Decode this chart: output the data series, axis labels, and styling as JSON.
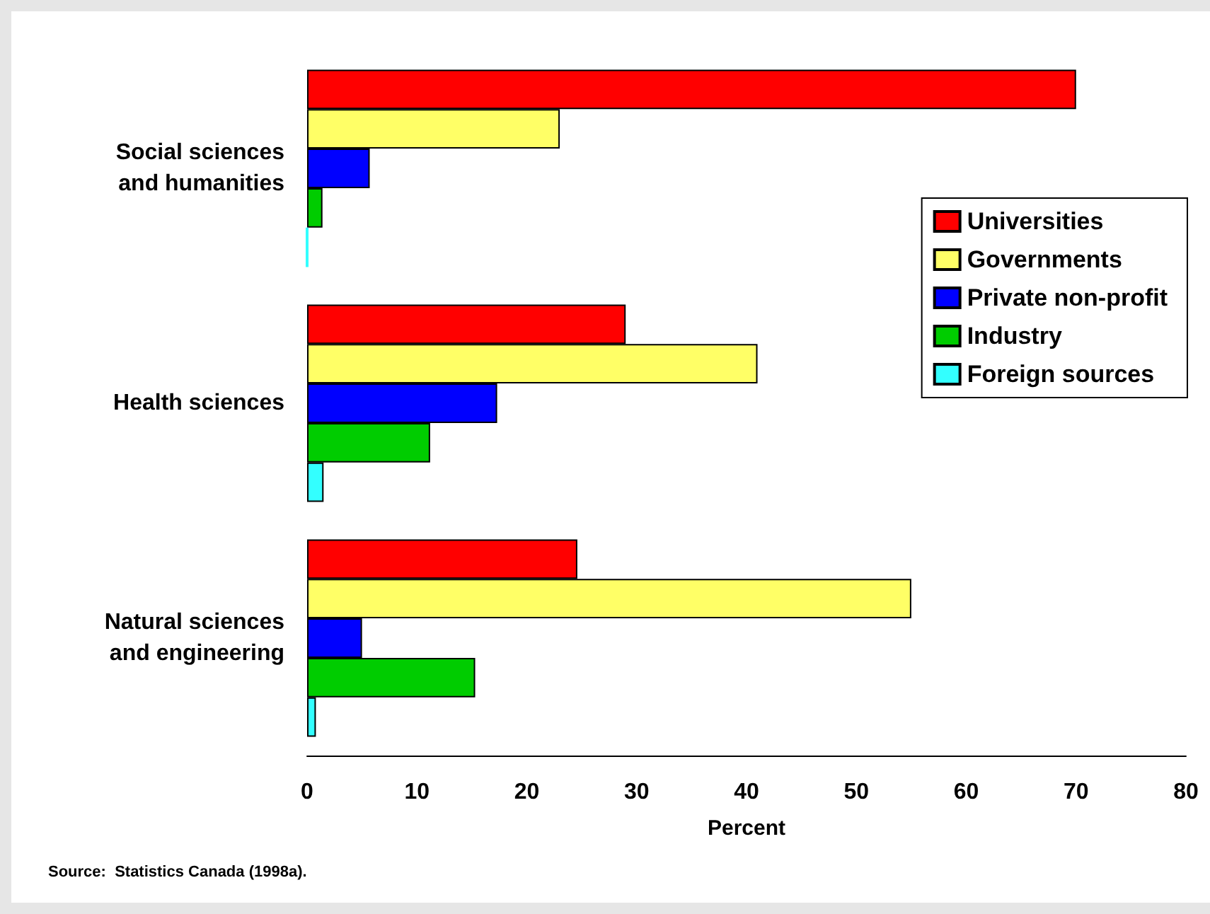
{
  "chart_data": {
    "type": "bar",
    "orientation": "horizontal",
    "categories": [
      "Social sciences\nand humanities",
      "Health sciences",
      "Natural sciences\nand engineering"
    ],
    "series": [
      {
        "name": "Universities",
        "color": "#ff0000",
        "values": [
          70,
          29,
          24.6
        ]
      },
      {
        "name": "Governments",
        "color": "#ffff66",
        "values": [
          23,
          41,
          55
        ]
      },
      {
        "name": "Private non-profit",
        "color": "#0000ff",
        "values": [
          5.7,
          17.3,
          5
        ]
      },
      {
        "name": "Industry",
        "color": "#00cc00",
        "values": [
          1.4,
          11.2,
          15.3
        ]
      },
      {
        "name": "Foreign sources",
        "color": "#33ffff",
        "values": [
          0,
          1.5,
          0.8
        ]
      }
    ],
    "xlabel": "Percent",
    "xlim": [
      0,
      80
    ],
    "xticks": [
      0,
      10,
      20,
      30,
      40,
      50,
      60,
      70,
      80
    ],
    "grid": false,
    "legend": "right",
    "annotations": [
      "Source:  Statistics Canada (1998a)."
    ]
  }
}
